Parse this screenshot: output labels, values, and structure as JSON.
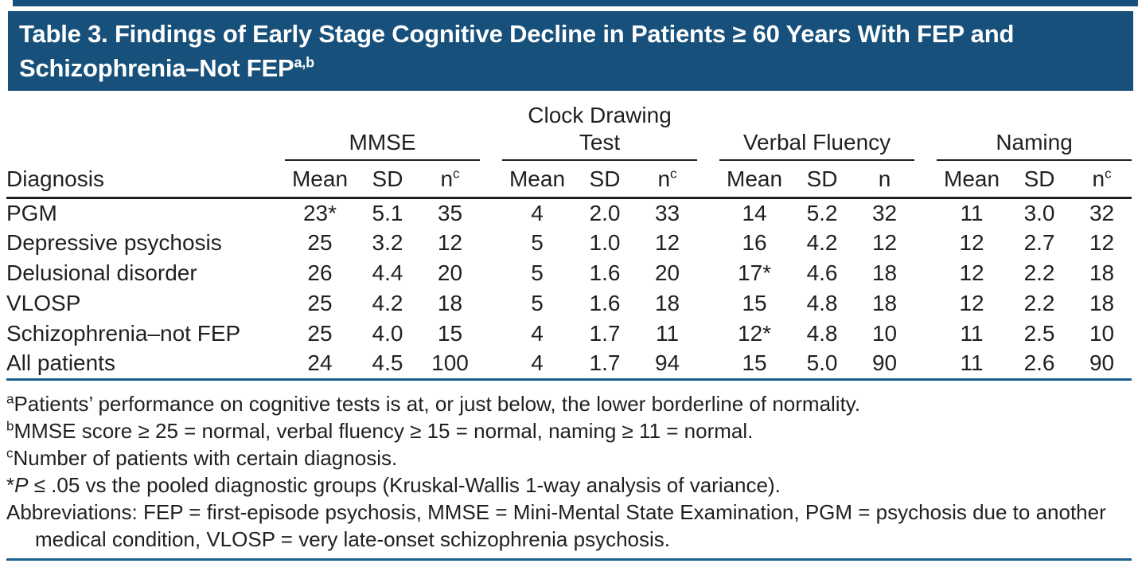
{
  "colors": {
    "header_blue": "#17507a",
    "rule_blue": "#1a5f8e",
    "text": "#231f20"
  },
  "title_bar": {
    "title": "Table 3. Findings of Early Stage Cognitive Decline in Patients ≥ 60 Years With FEP and Schizophrenia–Not FEP",
    "superscript": "a,b"
  },
  "table": {
    "diagnosis_header": "Diagnosis",
    "groups": [
      {
        "label_lines": [
          "MMSE"
        ],
        "columns": [
          {
            "text": "Mean",
            "sup": ""
          },
          {
            "text": "SD",
            "sup": ""
          },
          {
            "text": "n",
            "sup": "c"
          }
        ]
      },
      {
        "label_lines": [
          "Clock Drawing",
          "Test"
        ],
        "columns": [
          {
            "text": "Mean",
            "sup": ""
          },
          {
            "text": "SD",
            "sup": ""
          },
          {
            "text": "n",
            "sup": "c"
          }
        ]
      },
      {
        "label_lines": [
          "Verbal Fluency"
        ],
        "columns": [
          {
            "text": "Mean",
            "sup": ""
          },
          {
            "text": "SD",
            "sup": ""
          },
          {
            "text": "n",
            "sup": ""
          }
        ]
      },
      {
        "label_lines": [
          "Naming"
        ],
        "columns": [
          {
            "text": "Mean",
            "sup": ""
          },
          {
            "text": "SD",
            "sup": ""
          },
          {
            "text": "n",
            "sup": "c"
          }
        ]
      }
    ],
    "rows": [
      {
        "diagnosis": "PGM",
        "values": [
          "23*",
          "5.1",
          "35",
          "4",
          "2.0",
          "33",
          "14",
          "5.2",
          "32",
          "11",
          "3.0",
          "32"
        ]
      },
      {
        "diagnosis": "Depressive psychosis",
        "values": [
          "25",
          "3.2",
          "12",
          "5",
          "1.0",
          "12",
          "16",
          "4.2",
          "12",
          "12",
          "2.7",
          "12"
        ]
      },
      {
        "diagnosis": "Delusional disorder",
        "values": [
          "26",
          "4.4",
          "20",
          "5",
          "1.6",
          "20",
          "17*",
          "4.6",
          "18",
          "12",
          "2.2",
          "18"
        ]
      },
      {
        "diagnosis": "VLOSP",
        "values": [
          "25",
          "4.2",
          "18",
          "5",
          "1.6",
          "18",
          "15",
          "4.8",
          "18",
          "12",
          "2.2",
          "18"
        ]
      },
      {
        "diagnosis": "Schizophrenia–not FEP",
        "values": [
          "25",
          "4.0",
          "15",
          "4",
          "1.7",
          "11",
          "12*",
          "4.8",
          "10",
          "11",
          "2.5",
          "10"
        ]
      },
      {
        "diagnosis": "All patients",
        "values": [
          "24",
          "4.5",
          "100",
          "4",
          "1.7",
          "94",
          "15",
          "5.0",
          "90",
          "11",
          "2.6",
          "90"
        ]
      }
    ]
  },
  "footnotes": [
    {
      "sup": "a",
      "text": "Patients’ performance on cognitive tests is at, or just below, the lower borderline of normality."
    },
    {
      "sup": "b",
      "text": "MMSE score ≥ 25 = normal, verbal fluency ≥ 15 = normal, naming ≥ 11 = normal."
    },
    {
      "sup": "c",
      "text": "Number of patients with certain diagnosis."
    },
    {
      "marker": "*",
      "italic_lead": "P",
      "text": " ≤ .05 vs the pooled diagnostic groups (Kruskal-Wallis 1-way analysis of variance)."
    },
    {
      "text": "Abbreviations: FEP = first-episode psychosis, MMSE = Mini-Mental State Examination, PGM = psychosis due to another medical condition, VLOSP = very late-onset schizophrenia psychosis."
    }
  ]
}
